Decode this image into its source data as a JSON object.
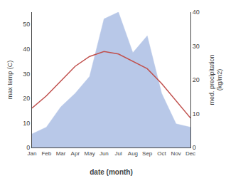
{
  "chart_data": {
    "type": "line",
    "categories": [
      "Jan",
      "Feb",
      "Mar",
      "Apr",
      "May",
      "Jun",
      "Jul",
      "Aug",
      "Sep",
      "Oct",
      "Nov",
      "Dec"
    ],
    "series": [
      {
        "type": "line",
        "color": "#c0504d",
        "values": [
          16,
          21,
          27,
          33,
          37,
          39,
          38,
          35,
          32,
          26,
          19,
          12
        ]
      },
      {
        "type": "area",
        "color": "#b8c8e8",
        "axis": "y2",
        "values": [
          4,
          6,
          12,
          16,
          21,
          38,
          40,
          28,
          33,
          16,
          7,
          6
        ]
      }
    ],
    "xlabel": "date (month)",
    "ylabel": "max temp (C)",
    "y2label": "med. precipitation\n(kg/m2)",
    "ylim": [
      0,
      55
    ],
    "yticks": [
      0,
      10,
      20,
      30,
      40,
      50
    ],
    "y2lim": [
      0,
      40
    ],
    "y2ticks": [
      0,
      10,
      20,
      30,
      40
    ],
    "grid": false
  }
}
